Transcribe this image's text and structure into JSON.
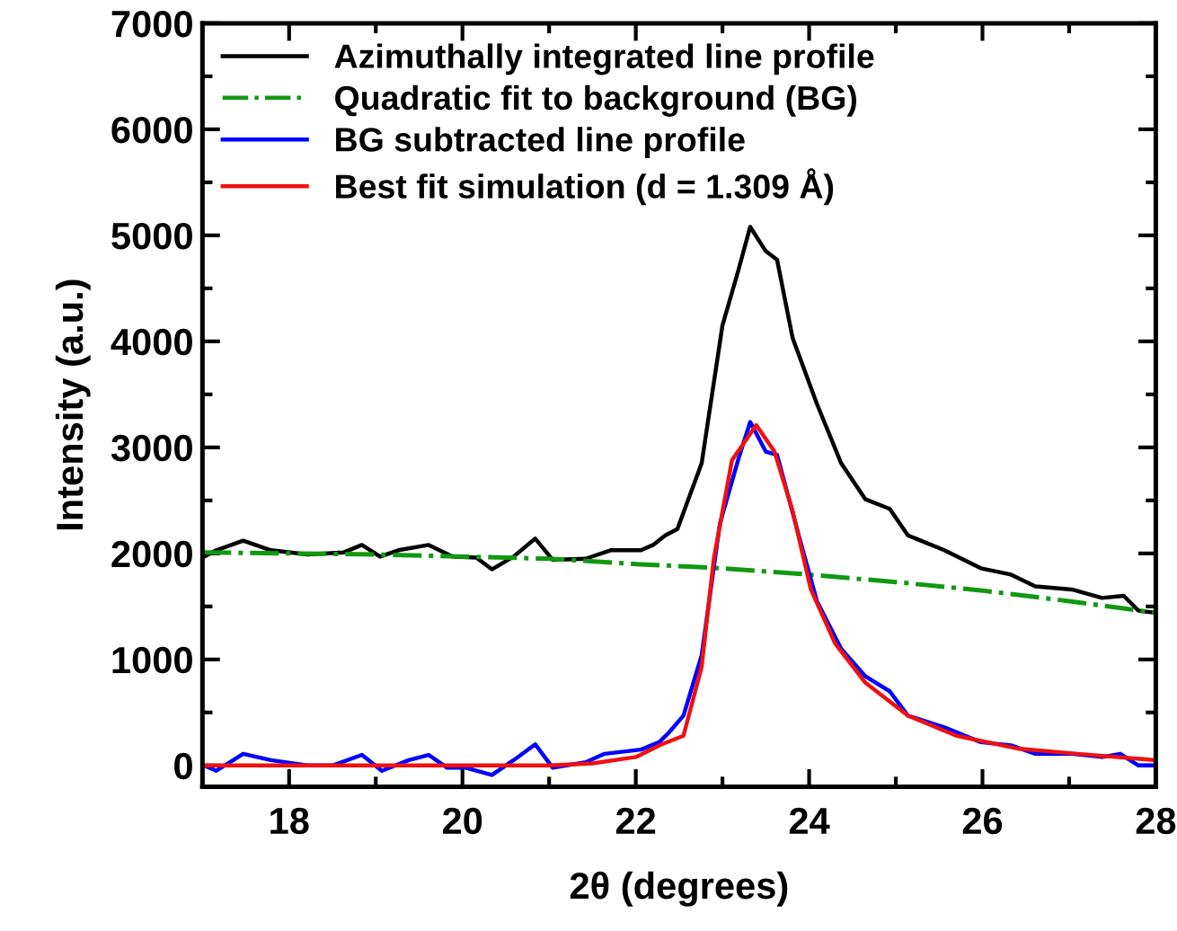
{
  "chart_data": {
    "type": "line",
    "xlabel": "2θ (degrees)",
    "ylabel": "Intensity (a.u.)",
    "xlim": [
      17,
      28
    ],
    "ylim": [
      -200,
      7000
    ],
    "xticks": [
      {
        "value": 17,
        "label": null
      },
      18,
      {
        "value": 19,
        "label": null
      },
      20,
      {
        "value": 21,
        "label": null
      },
      22,
      {
        "value": 23,
        "label": null
      },
      24,
      {
        "value": 25,
        "label": null
      },
      26,
      {
        "value": 27,
        "label": null
      },
      28
    ],
    "yticks": [
      0,
      {
        "value": 500,
        "label": null
      },
      1000,
      {
        "value": 1500,
        "label": null
      },
      2000,
      {
        "value": 2500,
        "label": null
      },
      3000,
      {
        "value": 3500,
        "label": null
      },
      4000,
      {
        "value": 4500,
        "label": null
      },
      5000,
      {
        "value": 5500,
        "label": null
      },
      6000,
      {
        "value": 6500,
        "label": null
      },
      7000
    ],
    "legend": "top left",
    "grid": false,
    "marker": "none",
    "series": [
      {
        "name": "Azimuthally integrated line profile",
        "color": "#000000",
        "line_style": "solid",
        "x": [
          17.02,
          17.16,
          17.47,
          17.79,
          18.21,
          18.63,
          18.84,
          19.05,
          19.26,
          19.61,
          19.89,
          20.16,
          20.34,
          20.59,
          20.84,
          21.04,
          21.42,
          21.71,
          22.06,
          22.2,
          22.34,
          22.48,
          22.76,
          23.0,
          23.18,
          23.32,
          23.5,
          23.63,
          23.81,
          24.09,
          24.37,
          24.65,
          24.93,
          25.14,
          25.56,
          25.98,
          26.33,
          26.61,
          27.03,
          27.38,
          27.63,
          27.8,
          28.0
        ],
        "values": [
          1970,
          2030,
          2120,
          2030,
          1990,
          2010,
          2080,
          1970,
          2030,
          2080,
          1970,
          1960,
          1850,
          1970,
          2140,
          1940,
          1950,
          2030,
          2030,
          2080,
          2170,
          2230,
          2850,
          4150,
          4660,
          5080,
          4850,
          4770,
          4030,
          3410,
          2850,
          2510,
          2420,
          2170,
          2030,
          1860,
          1800,
          1690,
          1660,
          1580,
          1600,
          1460,
          1440
        ]
      },
      {
        "name": "Quadratic fit to background (BG)",
        "color": "#119911",
        "line_style": "dashdot",
        "x": [
          17,
          19,
          21,
          22,
          23,
          24,
          25,
          26,
          27,
          28
        ],
        "values": [
          2010,
          1990,
          1950,
          1900,
          1860,
          1800,
          1730,
          1650,
          1550,
          1440
        ]
      },
      {
        "name": "BG subtracted line profile",
        "color": "#0000ff",
        "line_style": "solid",
        "x": [
          17.02,
          17.16,
          17.47,
          17.79,
          18.21,
          18.5,
          18.84,
          19.07,
          19.38,
          19.61,
          19.82,
          20.03,
          20.34,
          20.59,
          20.84,
          21.04,
          21.42,
          21.64,
          22.06,
          22.27,
          22.37,
          22.55,
          22.76,
          22.97,
          23.18,
          23.32,
          23.5,
          23.63,
          23.88,
          24.09,
          24.37,
          24.65,
          24.93,
          25.14,
          25.56,
          25.98,
          26.33,
          26.61,
          27.03,
          27.38,
          27.59,
          27.8,
          28.0
        ],
        "values": [
          0,
          -50,
          110,
          50,
          0,
          0,
          100,
          -50,
          50,
          100,
          -20,
          -20,
          -90,
          50,
          200,
          -20,
          30,
          110,
          150,
          220,
          300,
          470,
          1040,
          2280,
          2880,
          3240,
          2960,
          2930,
          2170,
          1550,
          1100,
          840,
          700,
          470,
          360,
          220,
          190,
          110,
          110,
          80,
          110,
          0,
          0
        ]
      },
      {
        "name": "Best fit simulation (d = 1.309 Å)",
        "color": "#ee1111",
        "line_style": "solid",
        "x": [
          17,
          21,
          21.5,
          22,
          22.3,
          22.55,
          22.76,
          22.9,
          23.11,
          23.39,
          23.6,
          23.81,
          24.02,
          24.3,
          24.65,
          25.14,
          25.7,
          26.4,
          27.1,
          28.0
        ],
        "values": [
          0,
          0,
          20,
          80,
          200,
          280,
          930,
          1950,
          2880,
          3210,
          2960,
          2400,
          1660,
          1150,
          780,
          470,
          280,
          160,
          110,
          50
        ]
      }
    ]
  }
}
